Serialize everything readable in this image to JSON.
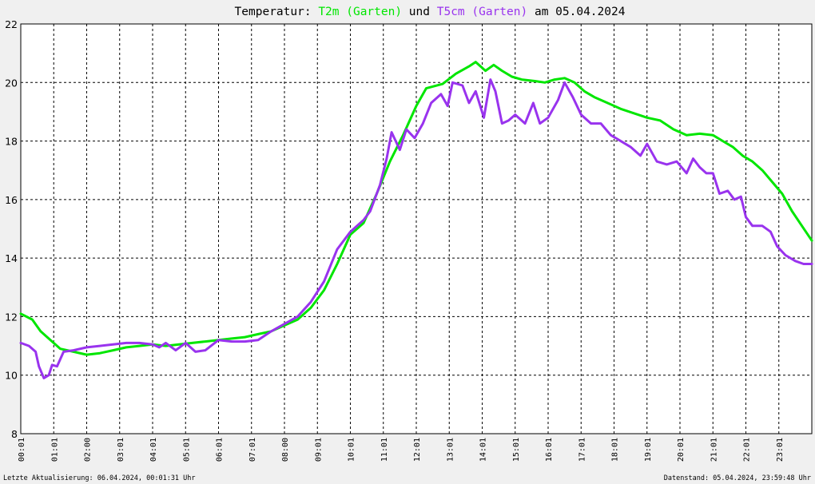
{
  "chart_data": {
    "type": "line",
    "title": {
      "prefix": "Temperatur: ",
      "series1": "T2m (Garten)",
      "middle": " und ",
      "series2": "T5cm (Garten)",
      "suffix": " am 05.04.2024"
    },
    "x_tick_labels": [
      "00:01",
      "01:01",
      "02:00",
      "03:01",
      "04:01",
      "05:01",
      "06:01",
      "07:01",
      "08:00",
      "09:01",
      "10:01",
      "11:01",
      "12:01",
      "13:01",
      "14:01",
      "15:01",
      "16:01",
      "17:01",
      "18:01",
      "19:01",
      "20:01",
      "21:01",
      "22:01",
      "23:01"
    ],
    "x_range_hours": [
      0,
      24
    ],
    "ylim": [
      8,
      22
    ],
    "y_ticks": [
      8,
      10,
      12,
      14,
      16,
      18,
      20,
      22
    ],
    "grid": true,
    "series": [
      {
        "name": "T2m (Garten)",
        "color": "#00e600",
        "points": [
          [
            0,
            12.1
          ],
          [
            0.35,
            11.9
          ],
          [
            0.6,
            11.5
          ],
          [
            0.9,
            11.2
          ],
          [
            1.2,
            10.9
          ],
          [
            1.6,
            10.8
          ],
          [
            2.0,
            10.7
          ],
          [
            2.4,
            10.75
          ],
          [
            2.8,
            10.85
          ],
          [
            3.2,
            10.95
          ],
          [
            3.6,
            11.0
          ],
          [
            4.0,
            11.05
          ],
          [
            4.4,
            11.0
          ],
          [
            4.8,
            11.05
          ],
          [
            5.2,
            11.1
          ],
          [
            5.6,
            11.15
          ],
          [
            6.0,
            11.2
          ],
          [
            6.4,
            11.25
          ],
          [
            6.8,
            11.3
          ],
          [
            7.2,
            11.4
          ],
          [
            7.6,
            11.5
          ],
          [
            8.0,
            11.7
          ],
          [
            8.4,
            11.9
          ],
          [
            8.8,
            12.3
          ],
          [
            9.2,
            12.9
          ],
          [
            9.6,
            13.8
          ],
          [
            10.0,
            14.8
          ],
          [
            10.4,
            15.2
          ],
          [
            10.8,
            16.2
          ],
          [
            11.2,
            17.3
          ],
          [
            11.6,
            18.2
          ],
          [
            12.0,
            19.2
          ],
          [
            12.3,
            19.8
          ],
          [
            12.8,
            19.95
          ],
          [
            13.2,
            20.3
          ],
          [
            13.6,
            20.55
          ],
          [
            13.8,
            20.7
          ],
          [
            14.1,
            20.4
          ],
          [
            14.35,
            20.6
          ],
          [
            14.6,
            20.4
          ],
          [
            14.9,
            20.2
          ],
          [
            15.2,
            20.1
          ],
          [
            15.6,
            20.05
          ],
          [
            15.9,
            20.0
          ],
          [
            16.2,
            20.1
          ],
          [
            16.5,
            20.15
          ],
          [
            16.8,
            20.0
          ],
          [
            17.1,
            19.7
          ],
          [
            17.4,
            19.5
          ],
          [
            17.8,
            19.3
          ],
          [
            18.2,
            19.1
          ],
          [
            18.6,
            18.95
          ],
          [
            19.0,
            18.8
          ],
          [
            19.4,
            18.7
          ],
          [
            19.8,
            18.4
          ],
          [
            20.2,
            18.2
          ],
          [
            20.6,
            18.25
          ],
          [
            21.0,
            18.2
          ],
          [
            21.3,
            18.0
          ],
          [
            21.6,
            17.8
          ],
          [
            21.9,
            17.5
          ],
          [
            22.2,
            17.3
          ],
          [
            22.5,
            17.0
          ],
          [
            22.8,
            16.6
          ],
          [
            23.1,
            16.2
          ],
          [
            23.4,
            15.6
          ],
          [
            23.7,
            15.1
          ],
          [
            24.0,
            14.6
          ]
        ]
      },
      {
        "name": "T5cm (Garten)",
        "color": "#9933ee",
        "points": [
          [
            0,
            11.1
          ],
          [
            0.25,
            11.0
          ],
          [
            0.45,
            10.8
          ],
          [
            0.55,
            10.3
          ],
          [
            0.7,
            9.9
          ],
          [
            0.85,
            10.0
          ],
          [
            0.95,
            10.35
          ],
          [
            1.1,
            10.3
          ],
          [
            1.3,
            10.8
          ],
          [
            1.6,
            10.85
          ],
          [
            2.0,
            10.95
          ],
          [
            2.4,
            11.0
          ],
          [
            2.8,
            11.05
          ],
          [
            3.2,
            11.1
          ],
          [
            3.6,
            11.1
          ],
          [
            4.0,
            11.05
          ],
          [
            4.2,
            10.95
          ],
          [
            4.4,
            11.1
          ],
          [
            4.7,
            10.85
          ],
          [
            5.0,
            11.1
          ],
          [
            5.3,
            10.8
          ],
          [
            5.6,
            10.85
          ],
          [
            6.0,
            11.2
          ],
          [
            6.4,
            11.15
          ],
          [
            6.8,
            11.15
          ],
          [
            7.2,
            11.2
          ],
          [
            7.6,
            11.5
          ],
          [
            8.0,
            11.75
          ],
          [
            8.4,
            12.0
          ],
          [
            8.8,
            12.5
          ],
          [
            9.2,
            13.2
          ],
          [
            9.6,
            14.3
          ],
          [
            10.0,
            14.9
          ],
          [
            10.4,
            15.3
          ],
          [
            10.6,
            15.6
          ],
          [
            10.9,
            16.5
          ],
          [
            11.1,
            17.4
          ],
          [
            11.25,
            18.3
          ],
          [
            11.5,
            17.7
          ],
          [
            11.7,
            18.4
          ],
          [
            11.95,
            18.1
          ],
          [
            12.2,
            18.6
          ],
          [
            12.45,
            19.3
          ],
          [
            12.75,
            19.6
          ],
          [
            12.95,
            19.2
          ],
          [
            13.1,
            20.0
          ],
          [
            13.4,
            19.9
          ],
          [
            13.6,
            19.3
          ],
          [
            13.8,
            19.7
          ],
          [
            14.05,
            18.8
          ],
          [
            14.25,
            20.1
          ],
          [
            14.4,
            19.7
          ],
          [
            14.6,
            18.6
          ],
          [
            14.8,
            18.7
          ],
          [
            15.0,
            18.9
          ],
          [
            15.3,
            18.6
          ],
          [
            15.55,
            19.3
          ],
          [
            15.75,
            18.6
          ],
          [
            16.0,
            18.8
          ],
          [
            16.3,
            19.4
          ],
          [
            16.5,
            20.0
          ],
          [
            16.75,
            19.5
          ],
          [
            17.0,
            18.9
          ],
          [
            17.3,
            18.6
          ],
          [
            17.6,
            18.6
          ],
          [
            17.9,
            18.2
          ],
          [
            18.2,
            18.0
          ],
          [
            18.5,
            17.8
          ],
          [
            18.8,
            17.5
          ],
          [
            19.0,
            17.9
          ],
          [
            19.3,
            17.3
          ],
          [
            19.6,
            17.2
          ],
          [
            19.9,
            17.3
          ],
          [
            20.2,
            16.9
          ],
          [
            20.4,
            17.4
          ],
          [
            20.6,
            17.1
          ],
          [
            20.8,
            16.9
          ],
          [
            21.0,
            16.9
          ],
          [
            21.2,
            16.2
          ],
          [
            21.45,
            16.3
          ],
          [
            21.65,
            16.0
          ],
          [
            21.85,
            16.1
          ],
          [
            22.0,
            15.4
          ],
          [
            22.2,
            15.1
          ],
          [
            22.5,
            15.1
          ],
          [
            22.75,
            14.9
          ],
          [
            22.95,
            14.4
          ],
          [
            23.2,
            14.1
          ],
          [
            23.5,
            13.9
          ],
          [
            23.75,
            13.8
          ],
          [
            24.0,
            13.8
          ]
        ]
      }
    ]
  },
  "footer": {
    "left": "Letzte Aktualisierung: 06.04.2024, 00:01:31 Uhr",
    "right": "Datenstand: 05.04.2024, 23:59:48 Uhr"
  }
}
